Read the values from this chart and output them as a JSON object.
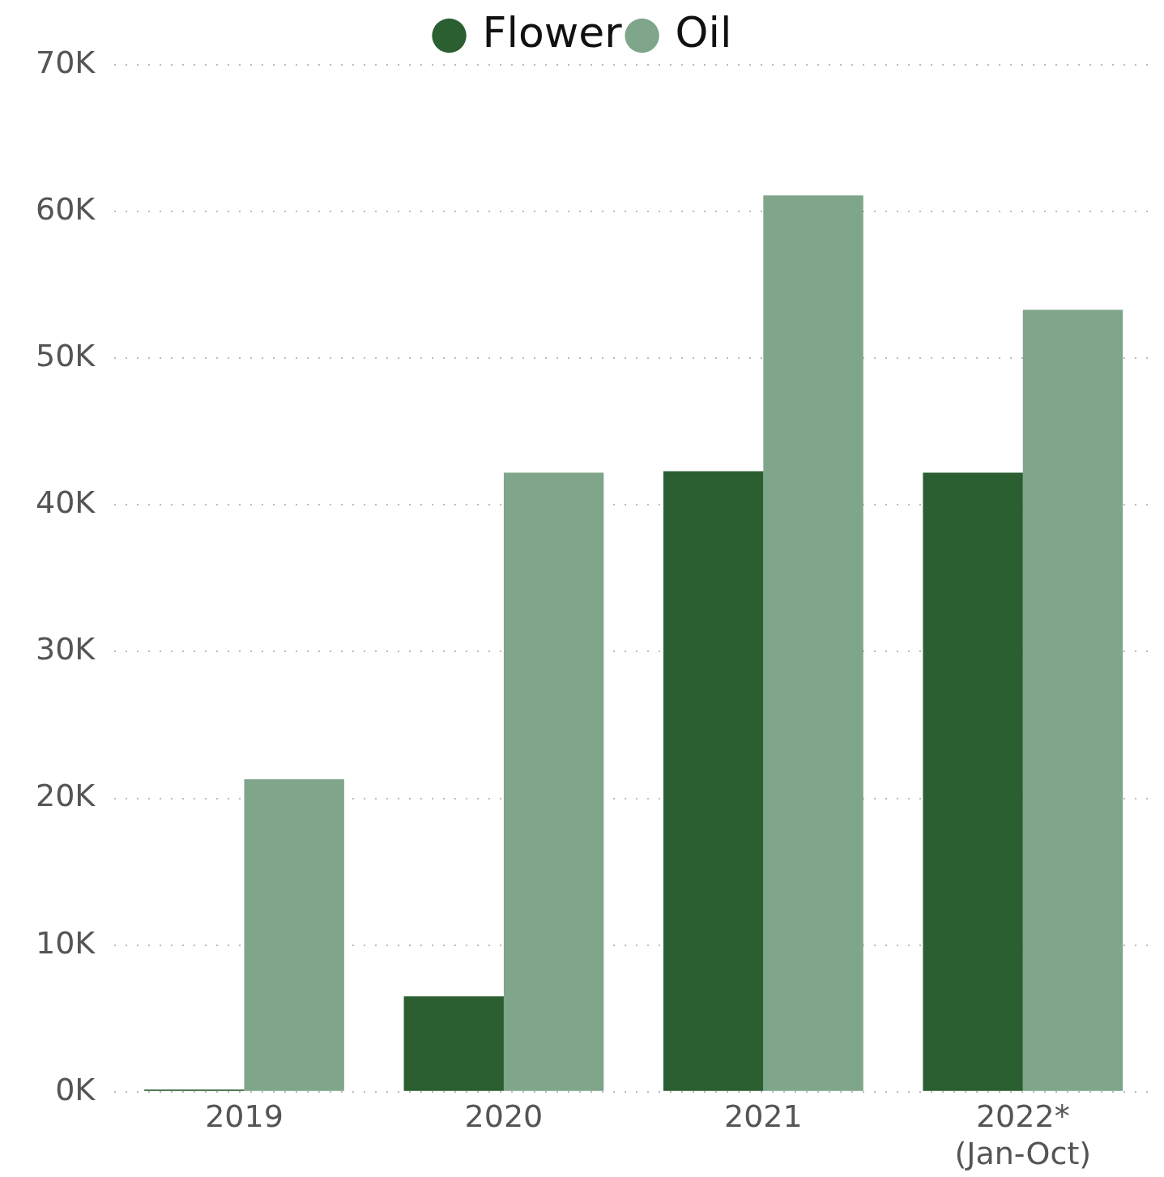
{
  "chart_data": {
    "type": "bar",
    "categories": [
      "2019",
      "2020",
      "2021",
      "2022*\n(Jan-Oct)"
    ],
    "series": [
      {
        "name": "Flower",
        "color": "#2b5e31",
        "values": [
          150,
          6500,
          42300,
          42200
        ]
      },
      {
        "name": "Oil",
        "color": "#7fa58a",
        "values": [
          21300,
          42200,
          61100,
          53300
        ]
      }
    ],
    "ylim": [
      0,
      70000
    ],
    "yticks": [
      {
        "value": 0,
        "label": "0K"
      },
      {
        "value": 10000,
        "label": "10K"
      },
      {
        "value": 20000,
        "label": "20K"
      },
      {
        "value": 30000,
        "label": "30K"
      },
      {
        "value": 40000,
        "label": "40K"
      },
      {
        "value": 50000,
        "label": "50K"
      },
      {
        "value": 60000,
        "label": "60K"
      },
      {
        "value": 70000,
        "label": "70K"
      }
    ],
    "grid": "y",
    "legend": "top",
    "marker": "circle"
  }
}
